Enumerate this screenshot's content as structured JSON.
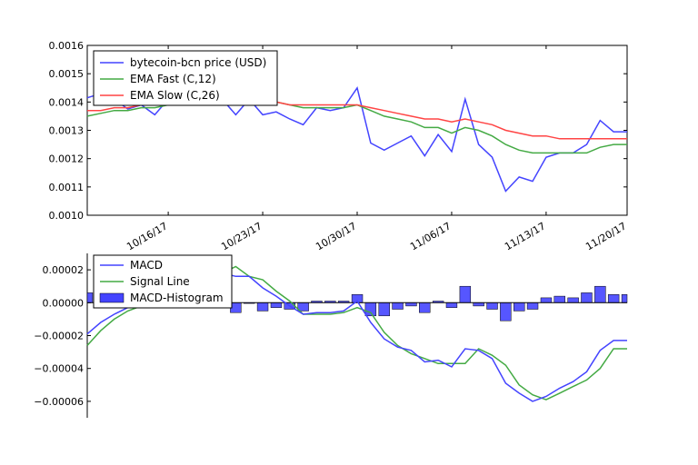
{
  "chart_data": [
    {
      "type": "line",
      "title": "",
      "xlabel": "",
      "ylabel": "",
      "ylim": [
        0.001,
        0.0016
      ],
      "yticks": [
        "0.0010",
        "0.0011",
        "0.0012",
        "0.0013",
        "0.0014",
        "0.0015",
        "0.0016"
      ],
      "xticks": [
        "10/16/17",
        "10/23/17",
        "10/30/17",
        "11/06/17",
        "11/13/17",
        "11/20/17"
      ],
      "legend_position": "top-left",
      "x": [
        0,
        1,
        2,
        3,
        4,
        5,
        6,
        7,
        8,
        9,
        10,
        11,
        12,
        13,
        14,
        15,
        16,
        17,
        18,
        19,
        20,
        21,
        22,
        23,
        24,
        25,
        26,
        27,
        28,
        29,
        30,
        31,
        32,
        33,
        34,
        35,
        36,
        37,
        38,
        39,
        40
      ],
      "series": [
        {
          "name": "bytecoin-bcn price (USD)",
          "color": "#4444ff",
          "values": [
            0.001415,
            0.00143,
            0.00141,
            0.001375,
            0.00139,
            0.001355,
            0.00141,
            0.00141,
            0.00141,
            0.00141,
            0.00141,
            0.001355,
            0.00141,
            0.001355,
            0.001365,
            0.00134,
            0.00132,
            0.00138,
            0.00137,
            0.00138,
            0.00145,
            0.001255,
            0.00123,
            0.001255,
            0.00128,
            0.00121,
            0.001285,
            0.001225,
            0.00141,
            0.00125,
            0.001205,
            0.001085,
            0.001135,
            0.00112,
            0.001205,
            0.00122,
            0.00122,
            0.00125,
            0.001335,
            0.001295,
            0.001295
          ]
        },
        {
          "name": "EMA Fast (C,12)",
          "color": "#44aa44",
          "values": [
            0.00135,
            0.00136,
            0.00137,
            0.00137,
            0.00138,
            0.00138,
            0.00139,
            0.0014,
            0.0014,
            0.0014,
            0.0014,
            0.0014,
            0.0014,
            0.0014,
            0.0014,
            0.00139,
            0.00138,
            0.00138,
            0.00138,
            0.00138,
            0.00139,
            0.00137,
            0.00135,
            0.00134,
            0.00133,
            0.00131,
            0.00131,
            0.00129,
            0.00131,
            0.0013,
            0.00128,
            0.00125,
            0.00123,
            0.00122,
            0.00122,
            0.00122,
            0.00122,
            0.00122,
            0.00124,
            0.00125,
            0.00125
          ]
        },
        {
          "name": "EMA Slow (C,26)",
          "color": "#ff4444",
          "values": [
            0.00137,
            0.00137,
            0.00138,
            0.00138,
            0.00139,
            0.00139,
            0.00139,
            0.0014,
            0.0014,
            0.0014,
            0.0014,
            0.0014,
            0.0014,
            0.0014,
            0.0014,
            0.00139,
            0.00139,
            0.00139,
            0.00139,
            0.00139,
            0.00139,
            0.00138,
            0.00137,
            0.00136,
            0.00135,
            0.00134,
            0.00134,
            0.00133,
            0.00134,
            0.00133,
            0.00132,
            0.0013,
            0.00129,
            0.00128,
            0.00128,
            0.00127,
            0.00127,
            0.00127,
            0.00127,
            0.00127,
            0.00127
          ]
        }
      ]
    },
    {
      "type": "line",
      "title": "",
      "xlabel": "",
      "ylabel": "",
      "ylim": [
        -7e-05,
        3e-05
      ],
      "yticks": [
        "0.00002",
        "0.00000",
        "−0.00002",
        "−0.00004",
        "−0.00006"
      ],
      "legend_position": "top-left",
      "x": [
        0,
        1,
        2,
        3,
        4,
        5,
        6,
        7,
        8,
        9,
        10,
        11,
        12,
        13,
        14,
        15,
        16,
        17,
        18,
        19,
        20,
        21,
        22,
        23,
        24,
        25,
        26,
        27,
        28,
        29,
        30,
        31,
        32,
        33,
        34,
        35,
        36,
        37,
        38,
        39,
        40
      ],
      "series": [
        {
          "name": "MACD",
          "color": "#4444ff",
          "values": [
            -1.9e-05,
            -1.2e-05,
            -7e-06,
            -3e-06,
            1e-06,
            5e-06,
            9e-06,
            1.2e-05,
            1.5e-05,
            1.6e-05,
            1.8e-05,
            1.6e-05,
            1.6e-05,
            9e-06,
            4e-06,
            -2e-06,
            -7e-06,
            -6e-06,
            -6e-06,
            -5e-06,
            1e-06,
            -1.2e-05,
            -2.2e-05,
            -2.7e-05,
            -2.9e-05,
            -3.6e-05,
            -3.5e-05,
            -3.9e-05,
            -2.8e-05,
            -2.9e-05,
            -3.4e-05,
            -4.9e-05,
            -5.5e-05,
            -6e-05,
            -5.7e-05,
            -5.2e-05,
            -4.8e-05,
            -4.2e-05,
            -2.9e-05,
            -2.3e-05,
            -2.3e-05
          ]
        },
        {
          "name": "Signal Line",
          "color": "#44aa44",
          "values": [
            -2.6e-05,
            -1.7e-05,
            -1e-05,
            -5e-06,
            -2e-06,
            2e-06,
            5e-06,
            9e-06,
            1.2e-05,
            1.5e-05,
            1.8e-05,
            2.2e-05,
            1.6e-05,
            1.4e-05,
            7e-06,
            1e-06,
            -7e-06,
            -7e-06,
            -7e-06,
            -6e-06,
            -3e-06,
            -6e-06,
            -1.8e-05,
            -2.6e-05,
            -3.1e-05,
            -3.4e-05,
            -3.7e-05,
            -3.7e-05,
            -3.7e-05,
            -2.8e-05,
            -3.2e-05,
            -3.8e-05,
            -5e-05,
            -5.6e-05,
            -5.9e-05,
            -5.5e-05,
            -5.1e-05,
            -4.7e-05,
            -4e-05,
            -2.8e-05,
            -2.8e-05
          ]
        },
        {
          "name": "MACD-Histogram",
          "type": "bar",
          "color": "#4444ff",
          "values": [
            6e-06,
            5e-06,
            4e-06,
            3e-06,
            2e-06,
            2e-06,
            2e-06,
            1e-06,
            2e-06,
            1e-06,
            1e-06,
            -6e-06,
            0,
            -5e-06,
            -3e-06,
            -4e-06,
            -5e-06,
            1e-06,
            1e-06,
            1e-06,
            5e-06,
            -8e-06,
            -8e-06,
            -4e-06,
            -2e-06,
            -6e-06,
            1e-06,
            -3e-06,
            1e-05,
            -2e-06,
            -4e-06,
            -1.1e-05,
            -5e-06,
            -4e-06,
            3e-06,
            4e-06,
            3e-06,
            6e-06,
            1e-05,
            5e-06,
            5e-06
          ]
        }
      ]
    }
  ]
}
